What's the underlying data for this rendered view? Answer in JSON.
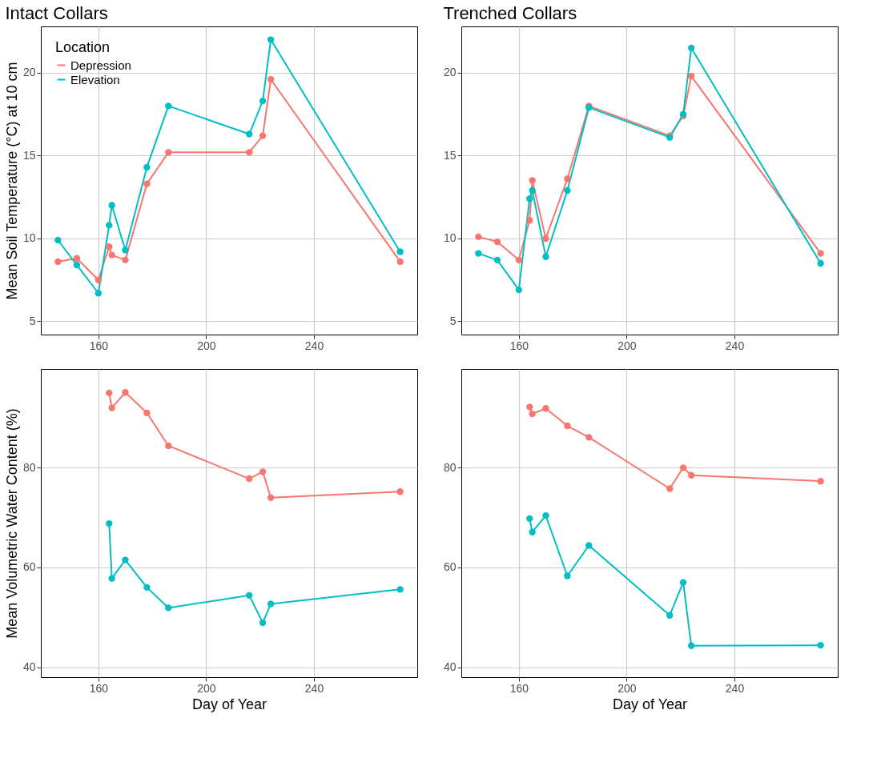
{
  "chart_data": [
    {
      "type": "line",
      "title": "Intact Collars",
      "ylabel": "Mean Soil Temperature (°C) at 10 cm",
      "legend_title": "Location",
      "legend": "top left",
      "marker": "circle",
      "line_style": "solid",
      "grid": true,
      "x": [
        145,
        152,
        160,
        164,
        165,
        170,
        178,
        186,
        216,
        221,
        224,
        272
      ],
      "series": [
        {
          "name": "Depression",
          "color": "#f8766d",
          "values": [
            8.6,
            8.8,
            7.5,
            9.5,
            9.0,
            8.7,
            13.3,
            15.2,
            15.2,
            16.2,
            19.6,
            8.6
          ]
        },
        {
          "name": "Elevation",
          "color": "#00bfc4",
          "values": [
            9.9,
            8.4,
            6.7,
            10.8,
            12.0,
            9.3,
            14.3,
            18.0,
            16.3,
            18.3,
            22.0,
            9.2
          ]
        }
      ],
      "xlim": [
        138.65,
        278.35
      ],
      "xticks": [
        160,
        200,
        240
      ],
      "ylim": [
        4.2,
        22.8
      ],
      "yticks": [
        5,
        10,
        15,
        20
      ]
    },
    {
      "type": "line",
      "title": "Trenched Collars",
      "marker": "circle",
      "line_style": "solid",
      "grid": true,
      "x": [
        145,
        152,
        160,
        164,
        165,
        170,
        178,
        186,
        216,
        221,
        224,
        272
      ],
      "series": [
        {
          "color": "#f8766d",
          "values": [
            10.1,
            9.8,
            8.7,
            11.1,
            13.5,
            10.0,
            13.6,
            18.0,
            16.2,
            17.4,
            19.8,
            9.1
          ]
        },
        {
          "color": "#00bfc4",
          "values": [
            9.1,
            8.7,
            6.9,
            12.4,
            12.9,
            8.9,
            12.9,
            17.9,
            16.1,
            17.5,
            21.5,
            8.5
          ]
        }
      ],
      "xlim": [
        138.65,
        278.35
      ],
      "xticks": [
        160,
        200,
        240
      ],
      "ylim": [
        4.2,
        22.8
      ],
      "yticks": [
        5,
        10,
        15,
        20
      ]
    },
    {
      "type": "line",
      "xlabel": "Day of Year",
      "ylabel": "Mean Volumetric Water Content (%)",
      "marker": "circle",
      "line_style": "solid",
      "grid": true,
      "x": [
        164,
        165,
        170,
        178,
        186,
        216,
        221,
        224,
        272
      ],
      "series": [
        {
          "color": "#f8766d",
          "values": [
            95.0,
            92.0,
            95.1,
            91.0,
            84.4,
            77.8,
            79.2,
            74.0,
            75.2
          ]
        },
        {
          "color": "#00bfc4",
          "values": [
            68.8,
            57.8,
            61.5,
            56.0,
            51.9,
            54.4,
            48.9,
            52.7,
            55.6
          ]
        }
      ],
      "xlim": [
        138.65,
        278.35
      ],
      "xticks": [
        160,
        200,
        240
      ],
      "ylim": [
        38.0,
        99.8
      ],
      "yticks": [
        40,
        60,
        80
      ]
    },
    {
      "type": "line",
      "xlabel": "Day of Year",
      "marker": "circle",
      "line_style": "solid",
      "grid": true,
      "x": [
        164,
        165,
        170,
        178,
        186,
        216,
        221,
        224,
        272
      ],
      "series": [
        {
          "color": "#f8766d",
          "values": [
            92.2,
            90.8,
            91.9,
            88.4,
            86.1,
            75.8,
            80.0,
            78.5,
            77.3
          ]
        },
        {
          "color": "#00bfc4",
          "values": [
            69.8,
            67.1,
            70.4,
            58.3,
            64.4,
            50.4,
            57.0,
            44.3,
            44.4
          ]
        }
      ],
      "xlim": [
        138.65,
        278.35
      ],
      "xticks": [
        160,
        200,
        240
      ],
      "ylim": [
        38.0,
        99.8
      ],
      "yticks": [
        40,
        60,
        80
      ]
    }
  ]
}
